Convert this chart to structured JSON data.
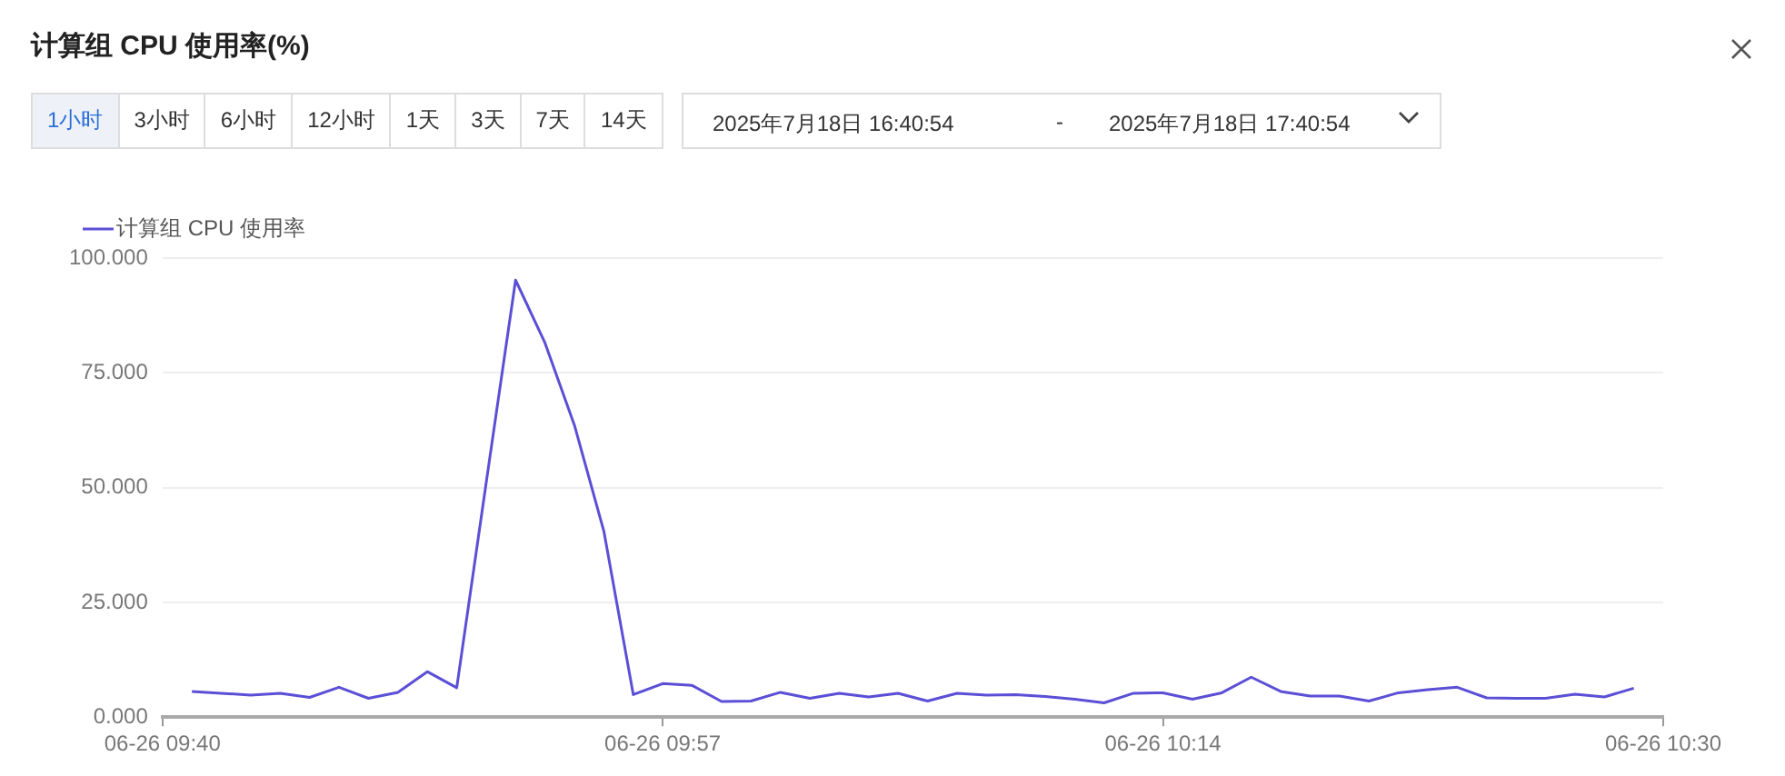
{
  "chart_data": {
    "type": "line",
    "title": "计算组 CPU 使用率(%)",
    "annotations": [
      "1小时",
      "3小时",
      "6小时",
      "12小时",
      "1天",
      "3天",
      "7天",
      "14天",
      "2025年7月18日 16:40:54",
      "-",
      "2025年7月18日 17:40:54"
    ],
    "categories": [
      "06-26 09:40",
      null,
      null,
      null,
      null,
      null,
      null,
      null,
      null,
      null,
      null,
      null,
      null,
      null,
      null,
      null,
      null,
      "06-26 09:57",
      null,
      null,
      null,
      null,
      null,
      null,
      null,
      null,
      null,
      null,
      null,
      null,
      null,
      null,
      null,
      null,
      "06-26 10:14",
      null,
      null,
      null,
      null,
      null,
      null,
      null,
      null,
      null,
      null,
      null,
      null,
      null,
      null,
      null,
      null,
      "06-26 10:30"
    ],
    "series": [
      {
        "name": "计算组 CPU 使用率",
        "color": "#5b4fd6",
        "values": [
          null,
          5.6,
          5.2,
          4.8,
          5.2,
          4.3,
          6.5,
          4.1,
          5.4,
          9.9,
          6.4,
          51,
          95.2,
          81.5,
          63.6,
          40.5,
          4.9,
          7.3,
          6.9,
          3.4,
          3.5,
          5.4,
          4.1,
          5.2,
          4.4,
          5.2,
          3.5,
          5.2,
          4.8,
          4.9,
          4.5,
          3.9,
          3.1,
          5.2,
          5.3,
          3.9,
          5.3,
          8.7,
          5.6,
          4.6,
          4.6,
          3.5,
          5.3,
          6.0,
          6.5,
          4.2,
          4.1,
          4.1,
          5.0,
          4.4,
          6.3,
          null
        ]
      }
    ],
    "ylim": [
      0,
      100
    ],
    "yticks": [
      {
        "value": 0,
        "label": "0.000"
      },
      {
        "value": 25,
        "label": "25.000"
      },
      {
        "value": 50,
        "label": "50.000"
      },
      {
        "value": 75,
        "label": "75.000"
      },
      {
        "value": 100,
        "label": "100.000"
      }
    ],
    "grid": "y",
    "legend": "top left",
    "marker": "none",
    "line_style": "solid"
  }
}
